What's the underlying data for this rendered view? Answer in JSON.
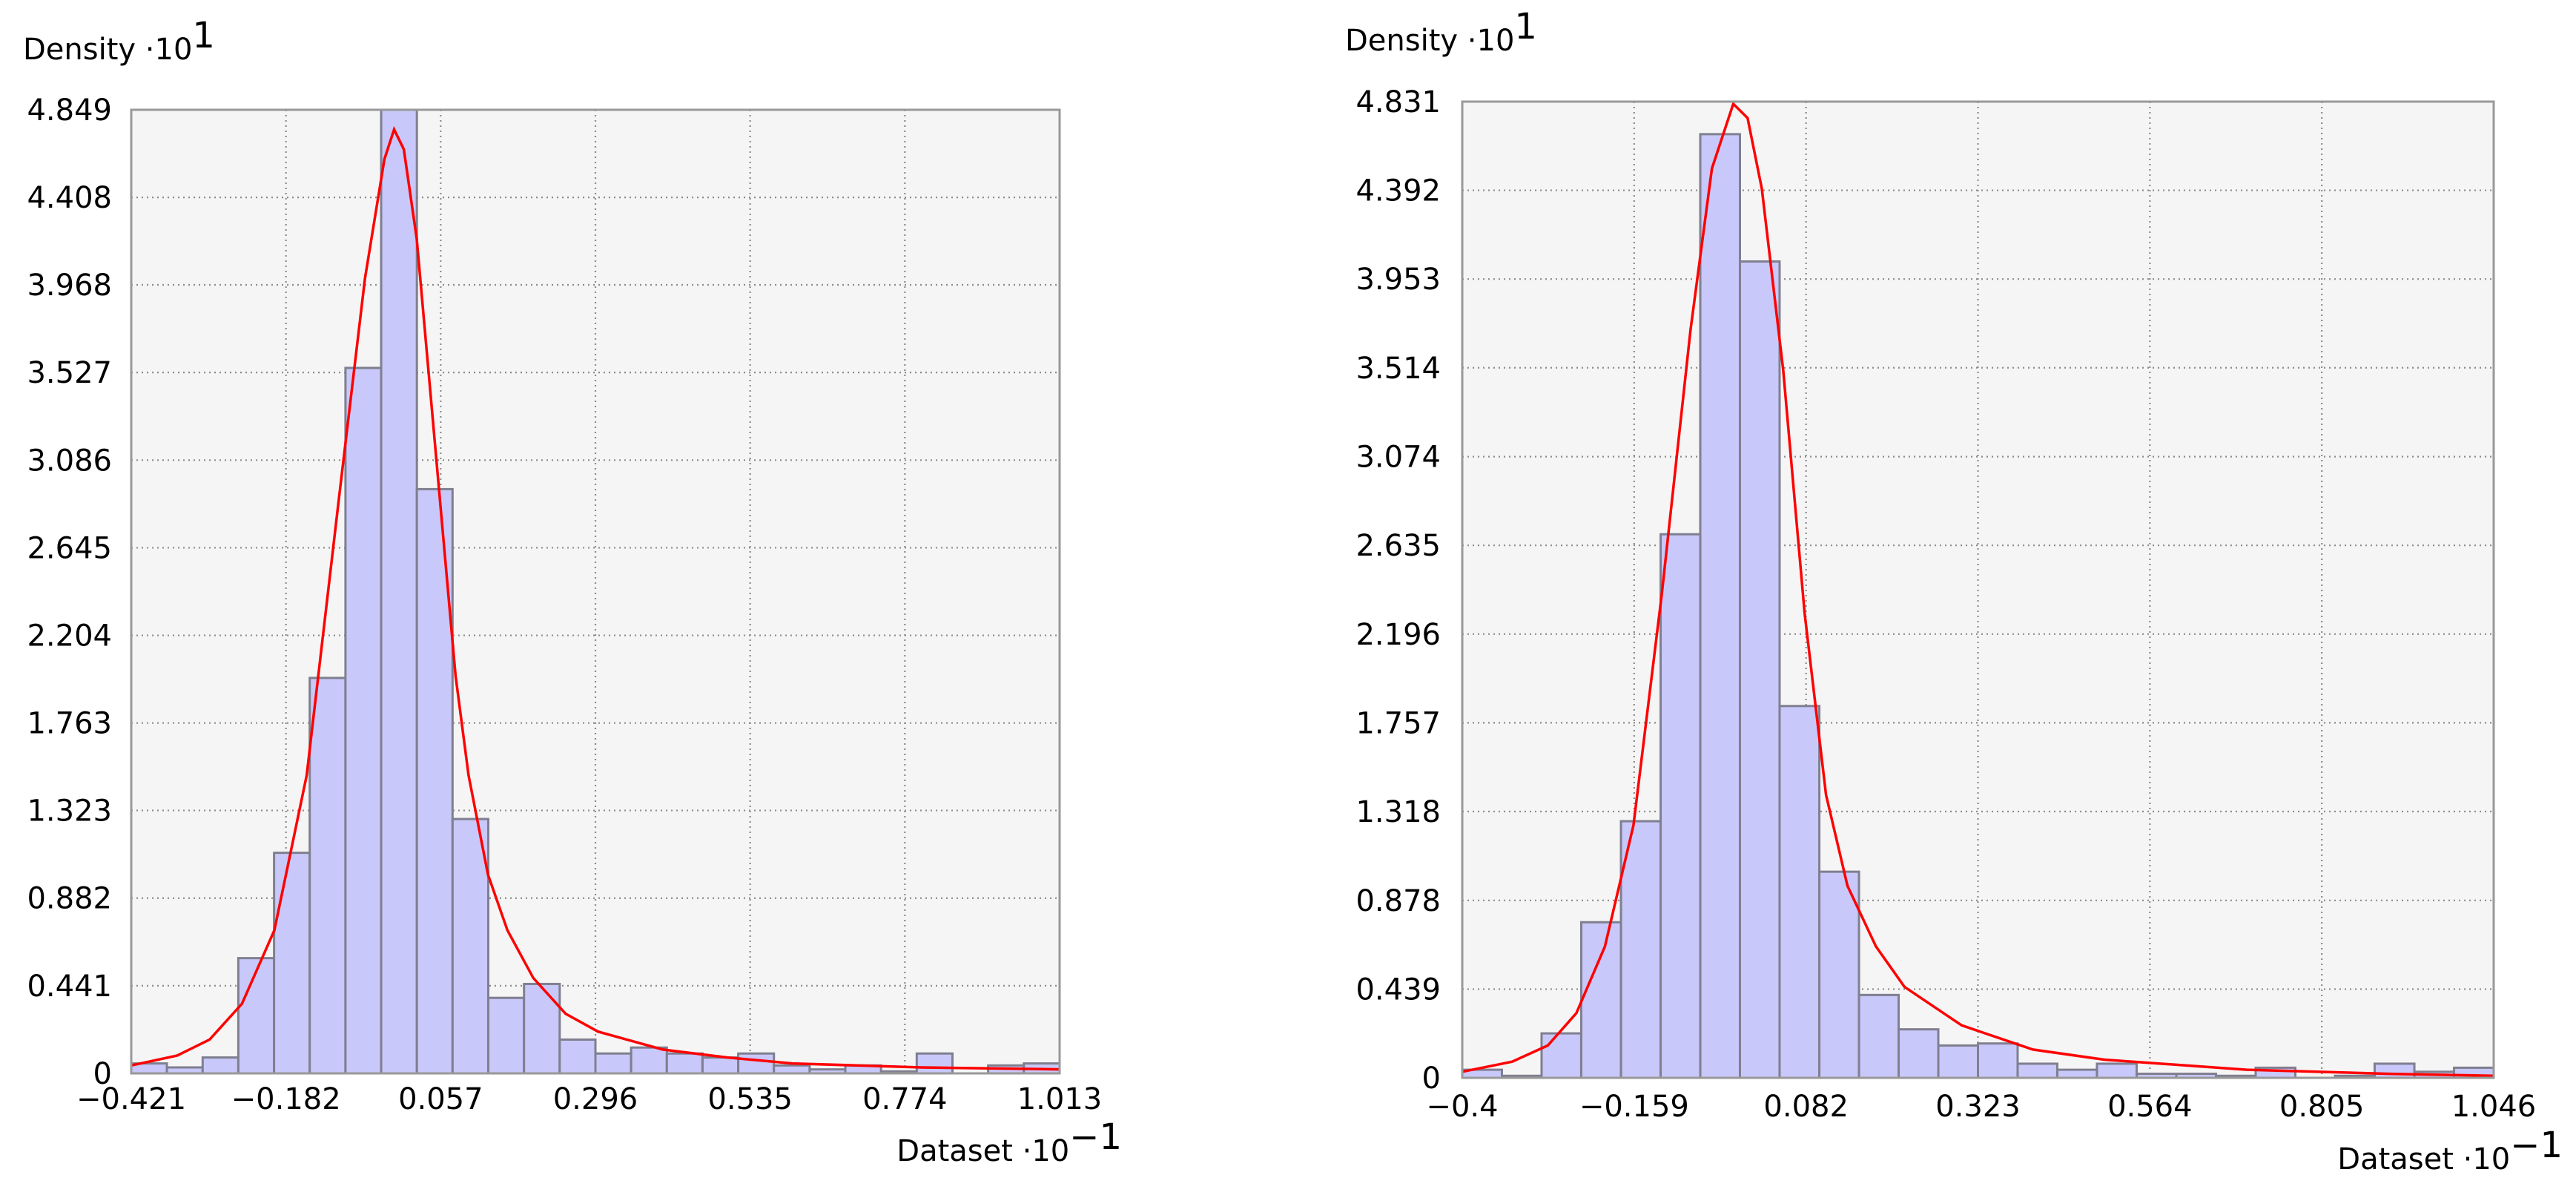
{
  "chart_data": [
    {
      "type": "histogram",
      "y_label": "Density ·10",
      "y_label_exponent": "1",
      "x_label": "Dataset ·10",
      "x_label_exponent": "−1",
      "bins": [
        -0.421,
        -0.3659,
        -0.3107,
        -0.2556,
        -0.2004,
        -0.1453,
        -0.0901,
        -0.035,
        0.0202,
        0.0753,
        0.1305,
        0.1857,
        0.2408,
        0.296,
        0.3511,
        0.4063,
        0.4614,
        0.5166,
        0.5717,
        0.6269,
        0.682,
        0.7372,
        0.7923,
        0.8475,
        0.9026,
        0.9578,
        1.013
      ],
      "values": [
        0.05,
        0.03,
        0.08,
        0.58,
        1.11,
        1.99,
        3.55,
        4.849,
        2.94,
        1.28,
        0.38,
        0.45,
        0.17,
        0.1,
        0.13,
        0.1,
        0.08,
        0.1,
        0.04,
        0.02,
        0.04,
        0.01,
        0.1,
        0,
        0.04,
        0.05
      ],
      "color": "#c8c8fa",
      "edge_color": "#7f7f90",
      "fit_x": [
        -0.421,
        -0.35,
        -0.3,
        -0.25,
        -0.2,
        -0.15,
        -0.1,
        -0.06,
        -0.03,
        -0.015,
        0.0,
        0.02,
        0.05,
        0.08,
        0.1,
        0.13,
        0.16,
        0.2,
        0.25,
        0.3,
        0.4,
        0.5,
        0.6,
        0.8,
        1.013
      ],
      "fit_y": [
        0.04,
        0.09,
        0.17,
        0.35,
        0.72,
        1.5,
        2.9,
        4.0,
        4.6,
        4.75,
        4.65,
        4.2,
        3.1,
        2.0,
        1.5,
        1.0,
        0.72,
        0.48,
        0.3,
        0.21,
        0.12,
        0.08,
        0.05,
        0.03,
        0.02
      ],
      "fit_color": "#ff0000",
      "xlim": [
        -0.421,
        1.013
      ],
      "xticks": [
        {
          "value": -0.421,
          "label": "−0.421"
        },
        {
          "value": -0.182,
          "label": "−0.182"
        },
        0.057,
        0.296,
        0.535,
        0.774,
        1.013
      ],
      "ylim": [
        0,
        4.849
      ],
      "yticks": [
        0,
        0.441,
        0.882,
        1.323,
        1.763,
        2.204,
        2.645,
        3.086,
        3.527,
        3.968,
        4.408,
        4.849
      ],
      "grid": true
    },
    {
      "type": "histogram",
      "y_label": "Density ·10",
      "y_label_exponent": "1",
      "x_label": "Dataset ·10",
      "x_label_exponent": "−1",
      "bins": [
        -0.4,
        -0.3444,
        -0.2888,
        -0.2332,
        -0.1775,
        -0.1219,
        -0.0663,
        -0.0107,
        0.0449,
        0.1006,
        0.1562,
        0.2118,
        0.2674,
        0.323,
        0.3786,
        0.4342,
        0.4898,
        0.5455,
        0.6011,
        0.6567,
        0.7123,
        0.7679,
        0.8235,
        0.8791,
        0.9348,
        0.9904,
        1.046
      ],
      "values": [
        0.04,
        0.01,
        0.22,
        0.77,
        1.27,
        2.69,
        4.67,
        4.04,
        1.84,
        1.02,
        0.41,
        0.24,
        0.16,
        0.17,
        0.07,
        0.04,
        0.07,
        0.02,
        0.02,
        0.01,
        0.05,
        0,
        0.01,
        0.07,
        0.03,
        0.05
      ],
      "color": "#c8c8fa",
      "edge_color": "#7f7f90",
      "fit_x": [
        -0.4,
        -0.33,
        -0.28,
        -0.24,
        -0.2,
        -0.16,
        -0.12,
        -0.08,
        -0.05,
        -0.02,
        0.0,
        0.02,
        0.05,
        0.08,
        0.11,
        0.14,
        0.18,
        0.22,
        0.3,
        0.4,
        0.5,
        0.7,
        0.9,
        1.046
      ],
      "fit_y": [
        0.03,
        0.08,
        0.16,
        0.32,
        0.65,
        1.25,
        2.4,
        3.7,
        4.5,
        4.82,
        4.75,
        4.4,
        3.5,
        2.3,
        1.4,
        0.95,
        0.65,
        0.45,
        0.26,
        0.14,
        0.09,
        0.04,
        0.02,
        0.01
      ],
      "fit_color": "#ff0000",
      "xlim": [
        -0.4,
        1.046
      ],
      "xticks": [
        {
          "value": -0.4,
          "label": "−0.4"
        },
        {
          "value": -0.159,
          "label": "−0.159"
        },
        0.082,
        0.323,
        0.564,
        0.805,
        1.046
      ],
      "ylim": [
        0,
        4.831
      ],
      "yticks": [
        0,
        0.439,
        0.878,
        1.318,
        1.757,
        2.196,
        2.635,
        3.074,
        3.514,
        3.953,
        4.392,
        4.831
      ],
      "grid": true
    }
  ]
}
